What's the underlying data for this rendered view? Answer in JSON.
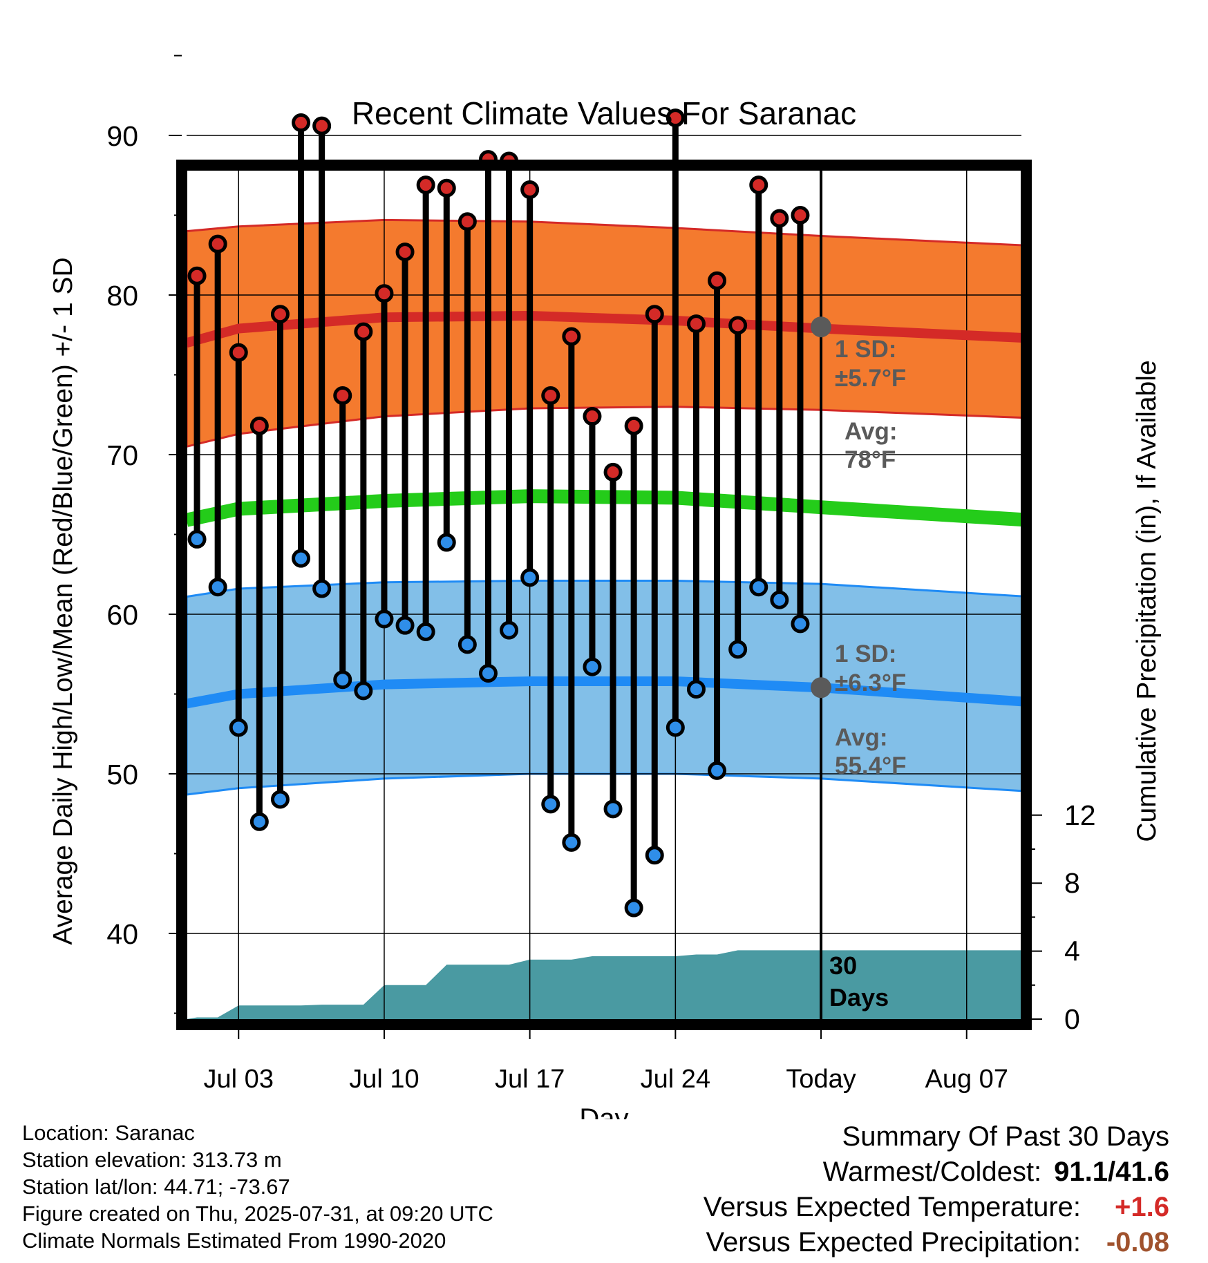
{
  "chart_data": {
    "type": "line",
    "title": "Recent Climate Values For Saranac",
    "xlabel": "Day",
    "ylabel": "Average Daily High/Low/Mean (Red/Blue/Green) +/- 1 SD",
    "y2label": "Cumulative Precipitation (in), If Available",
    "x_tick_labels": [
      "Jul 03",
      "Jul 10",
      "Jul 17",
      "Jul 24",
      "Today",
      "Aug 07"
    ],
    "x_tick_days": [
      3,
      10,
      17,
      24,
      31,
      38
    ],
    "xlim": [
      0.5,
      41
    ],
    "ylim": [
      34,
      96
    ],
    "y_ticks": [
      40,
      50,
      60,
      70,
      80,
      90
    ],
    "y2lim": [
      0,
      30
    ],
    "y2_ticks": [
      0,
      4,
      8,
      12
    ],
    "grid": true,
    "today_label": "30\nDays",
    "days": [
      1,
      2,
      3,
      4,
      5,
      6,
      7,
      8,
      9,
      10,
      11,
      12,
      13,
      14,
      15,
      16,
      17,
      18,
      19,
      20,
      21,
      22,
      23,
      24,
      25,
      26,
      27,
      28,
      29,
      30
    ],
    "series": [
      {
        "name": "High",
        "color": "#d42a27",
        "values": [
          81.2,
          83.2,
          76.4,
          71.8,
          78.8,
          90.8,
          90.6,
          73.7,
          77.7,
          80.1,
          82.7,
          86.9,
          86.7,
          84.6,
          88.5,
          88.4,
          86.6,
          73.7,
          77.4,
          72.4,
          68.9,
          71.8,
          78.8,
          91.1,
          78.2,
          80.9,
          78.1,
          86.9,
          84.8,
          85.0
        ]
      },
      {
        "name": "Low",
        "color": "#2f8ee9",
        "values": [
          64.7,
          61.7,
          52.9,
          47.0,
          48.4,
          63.5,
          61.6,
          55.9,
          55.2,
          59.7,
          59.3,
          58.9,
          64.5,
          58.1,
          56.3,
          59.0,
          62.3,
          48.1,
          45.7,
          56.7,
          47.8,
          41.6,
          44.9,
          52.9,
          55.3,
          50.2,
          57.8,
          61.7,
          60.9,
          59.4
        ]
      }
    ],
    "normals": {
      "x": [
        0.5,
        3,
        10,
        17,
        24,
        31,
        41
      ],
      "high_avg": [
        77.0,
        77.9,
        78.6,
        78.7,
        78.4,
        77.9,
        77.3
      ],
      "high_upper": [
        84.0,
        84.3,
        84.7,
        84.6,
        84.2,
        83.7,
        83.1
      ],
      "high_lower": [
        70.5,
        71.3,
        72.4,
        72.9,
        73.0,
        72.8,
        72.3
      ],
      "low_avg": [
        54.4,
        55.0,
        55.6,
        55.8,
        55.8,
        55.4,
        54.5
      ],
      "low_upper": [
        61.1,
        61.6,
        62.0,
        62.1,
        62.1,
        61.9,
        61.1
      ],
      "low_lower": [
        48.7,
        49.1,
        49.7,
        50.0,
        50.0,
        49.7,
        48.9
      ],
      "mean": [
        65.9,
        66.6,
        67.1,
        67.4,
        67.3,
        66.7,
        65.9
      ],
      "colors": {
        "high_band": "#f47a2e",
        "high_line": "#d42a27",
        "low_band": "#82bfe8",
        "low_line": "#1f8bf5",
        "mean": "#24cc1a"
      }
    },
    "precipitation": {
      "color": "#4a9aa2",
      "x": [
        0.5,
        1,
        2,
        3,
        4,
        5,
        6,
        7,
        8,
        9,
        10,
        11,
        12,
        13,
        14,
        15,
        16,
        17,
        18,
        19,
        20,
        21,
        22,
        23,
        24,
        25,
        26,
        27,
        31,
        41
      ],
      "y": [
        0,
        0.1,
        0.1,
        0.8,
        0.8,
        0.8,
        0.8,
        0.85,
        0.85,
        0.85,
        2.0,
        2.0,
        2.0,
        3.2,
        3.2,
        3.2,
        3.2,
        3.5,
        3.5,
        3.5,
        3.7,
        3.7,
        3.7,
        3.7,
        3.7,
        3.8,
        3.8,
        4.05,
        4.05,
        4.05
      ]
    },
    "annotations": {
      "high": {
        "sd_label": "1 SD:",
        "sd_value": "±5.7°F",
        "avg_label": "Avg:",
        "avg_value": "78°F",
        "avg_point": 78.0
      },
      "low": {
        "sd_label": "1 SD:",
        "sd_value": "±6.3°F",
        "avg_label": "Avg:",
        "avg_value": "55.4°F",
        "avg_point": 55.4
      },
      "color": "#5a5a5a"
    }
  },
  "info": {
    "location": "Location: Saranac",
    "elevation": "Station elevation: 313.73 m",
    "latlon": "Station lat/lon: 44.71; -73.67",
    "created": "Figure created on Thu, 2025-07-31, at 09:20 UTC",
    "normals": "Climate Normals Estimated From 1990-2020"
  },
  "summary": {
    "title": "Summary Of Past 30 Days",
    "warmest_label": "Warmest/Coldest:",
    "warmest_value": "91.1/41.6",
    "temp_label": "Versus Expected Temperature:",
    "temp_value": "+1.6",
    "temp_color": "#d42a27",
    "precip_label": "Versus Expected Precipitation:",
    "precip_value": "-0.08",
    "precip_color": "#a0522d"
  }
}
